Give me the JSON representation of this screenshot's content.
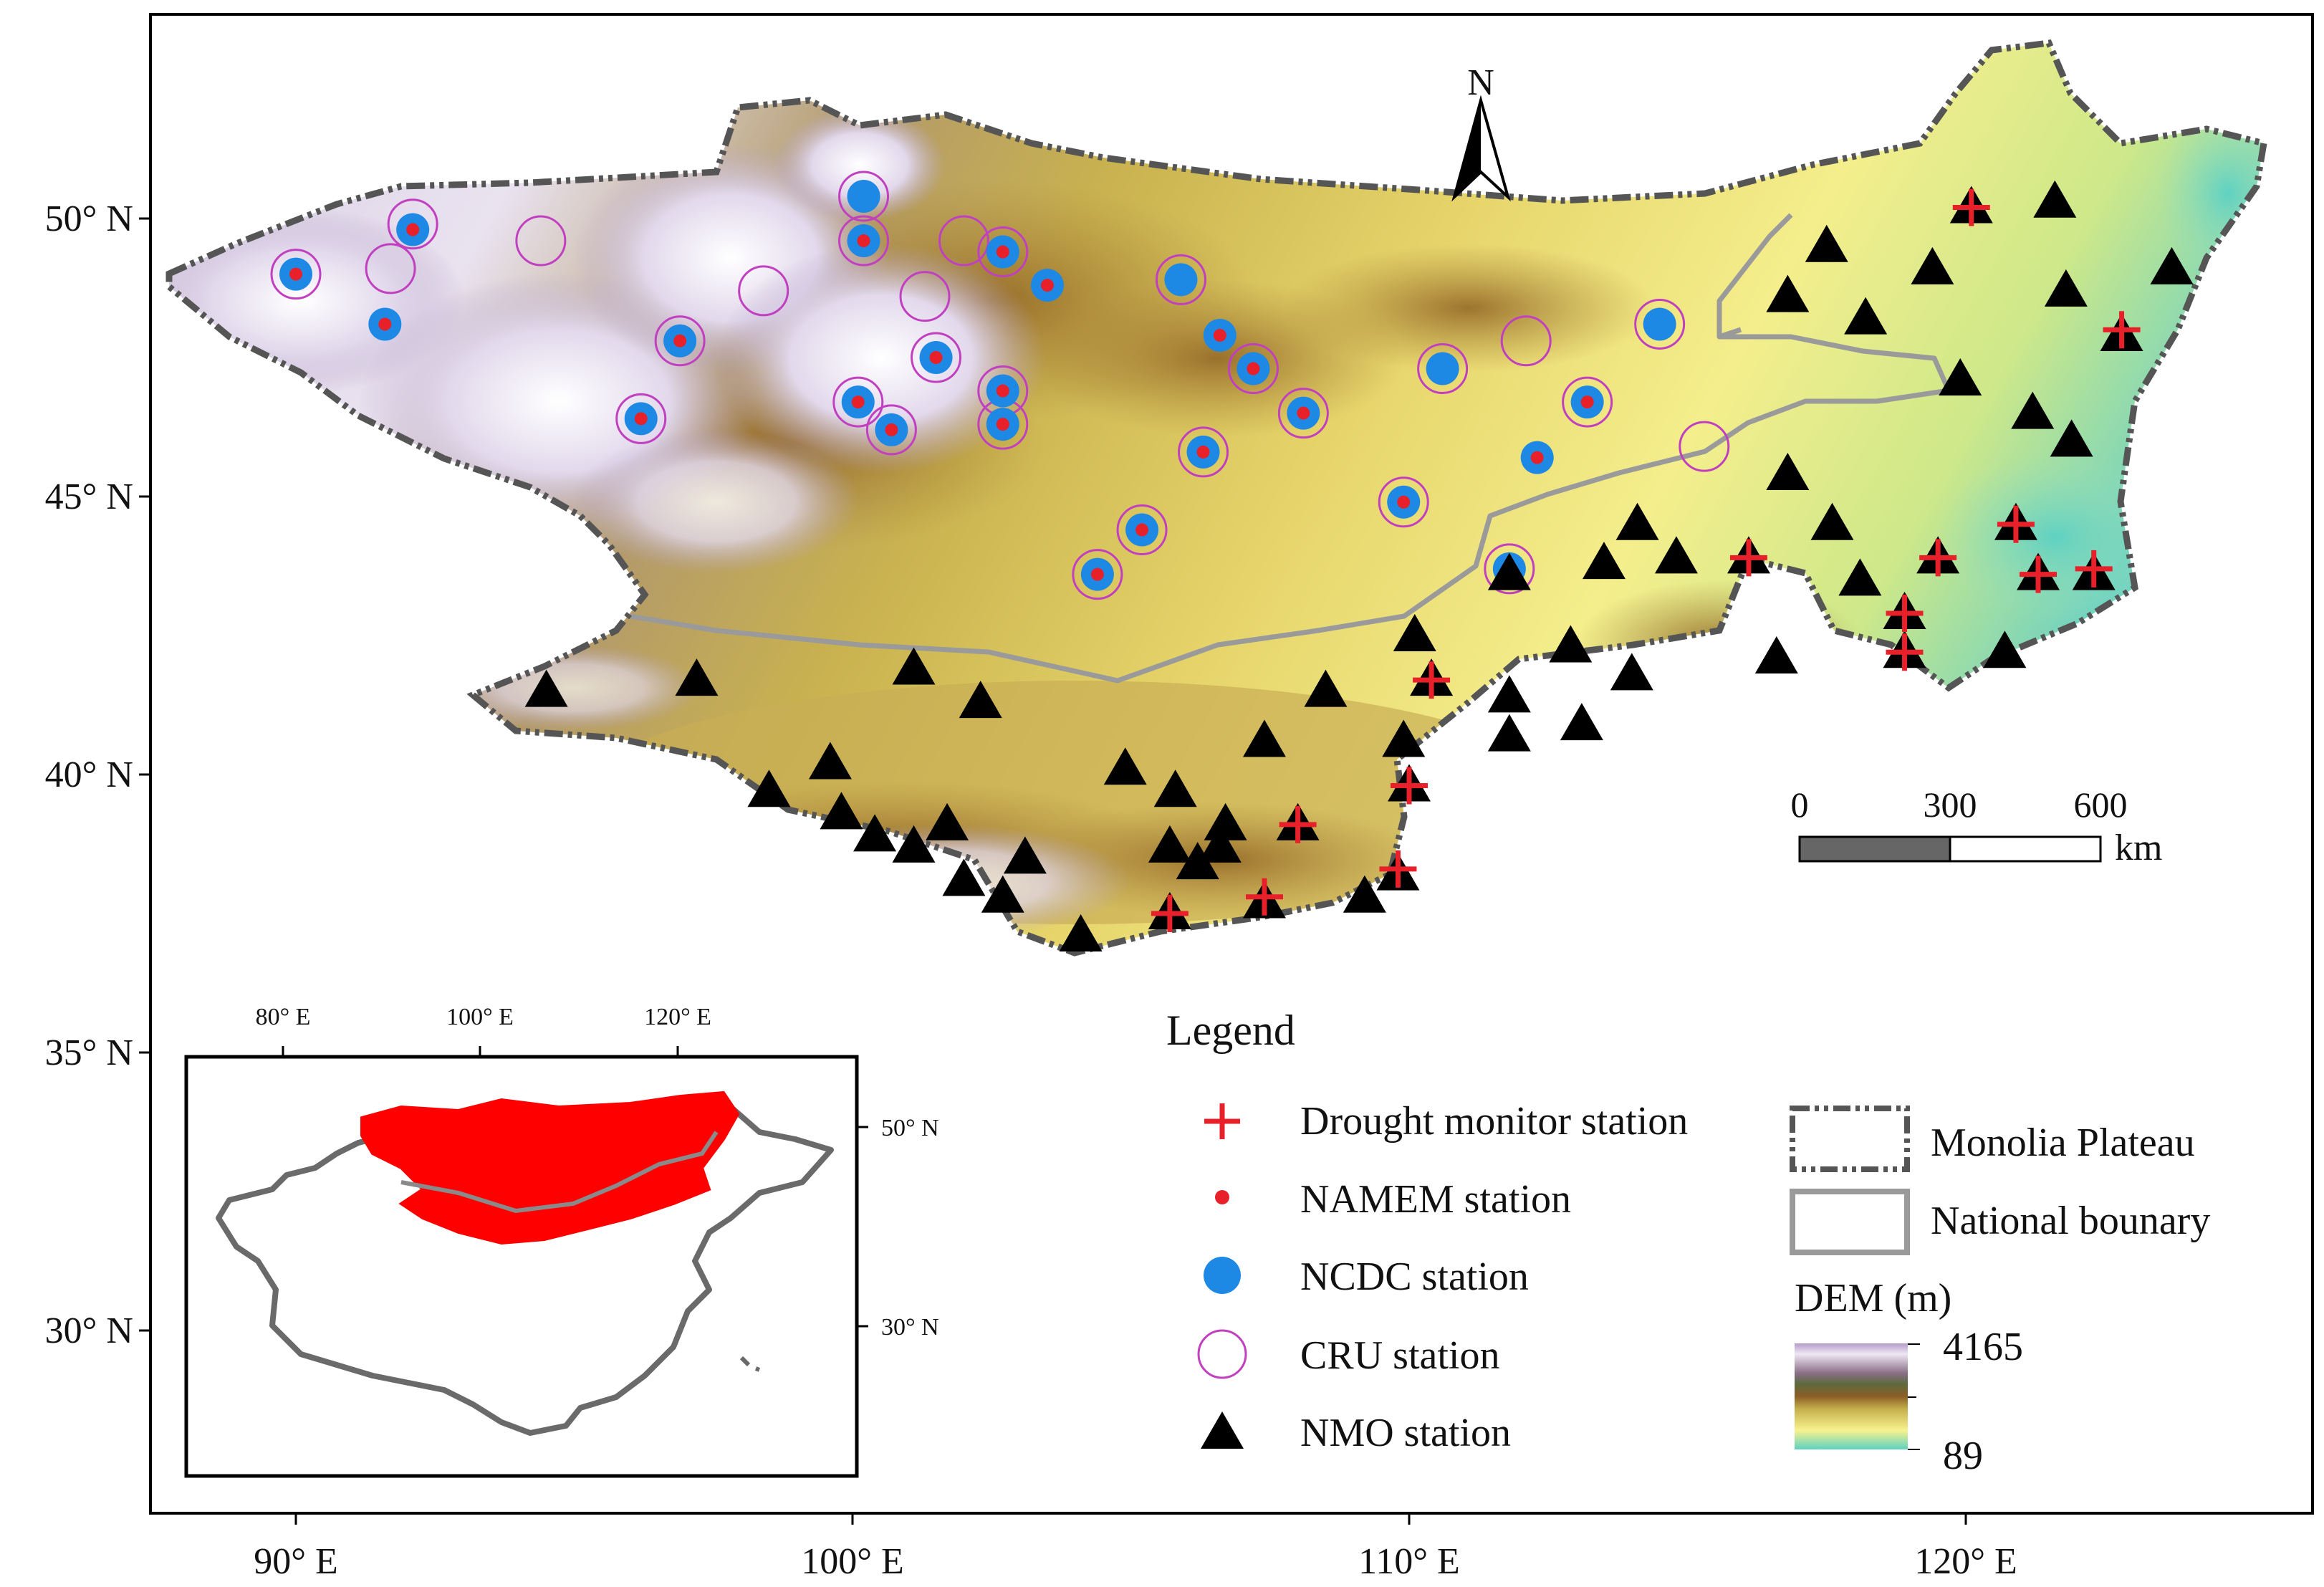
{
  "axes": {
    "lat_labels": [
      "50° N",
      "45° N",
      "40° N",
      "35° N",
      "30° N"
    ],
    "lon_labels": [
      "90° E",
      "100° E",
      "110° E",
      "120° E"
    ]
  },
  "north_arrow": {
    "label": "N"
  },
  "scale_bar": {
    "ticks": [
      "0",
      "300",
      "600"
    ],
    "unit": "km"
  },
  "inset": {
    "lon_labels": [
      "80° E",
      "100° E",
      "120° E"
    ],
    "lat_labels": [
      "50° N",
      "30° N"
    ]
  },
  "legend": {
    "title": "Legend",
    "items": [
      {
        "label": "Drought monitor station",
        "symbol": "plus",
        "color": "#e8202a"
      },
      {
        "label": "NAMEM station",
        "symbol": "dot",
        "color": "#e8202a"
      },
      {
        "label": "NCDC station",
        "symbol": "disc",
        "color": "#1e88e5"
      },
      {
        "label": "CRU station",
        "symbol": "ring",
        "color": "#c040c0"
      },
      {
        "label": "NMO station",
        "symbol": "triangle",
        "color": "#000000"
      }
    ],
    "boundaries": [
      {
        "label": "Monolia Plateau",
        "style": "dash-dot",
        "color": "#555555"
      },
      {
        "label": "National bounary",
        "style": "solid",
        "color": "#9a9a9a"
      }
    ],
    "dem": {
      "title": "DEM (m)",
      "max": "4165",
      "min": "89"
    }
  },
  "map_data": {
    "extent": {
      "lon": [
        87,
        127
      ],
      "lat": [
        27,
        53.5
      ]
    },
    "ncdc_stations": [
      [
        90,
        49
      ],
      [
        92.1,
        49.8
      ],
      [
        91.6,
        48.1
      ],
      [
        96.9,
        47.8
      ],
      [
        96.2,
        46.4
      ],
      [
        100.2,
        50.4
      ],
      [
        100.2,
        49.6
      ],
      [
        100.1,
        46.7
      ],
      [
        100.7,
        46.2
      ],
      [
        101.5,
        47.5
      ],
      [
        102.7,
        49.4
      ],
      [
        102.7,
        46.9
      ],
      [
        102.7,
        46.3
      ],
      [
        103.5,
        48.8
      ],
      [
        105.9,
        48.9
      ],
      [
        106.6,
        47.9
      ],
      [
        107.2,
        47.3
      ],
      [
        108.1,
        46.5
      ],
      [
        106.3,
        45.8
      ],
      [
        105.2,
        44.4
      ],
      [
        104.4,
        43.6
      ],
      [
        109.9,
        44.9
      ],
      [
        110.6,
        47.3
      ],
      [
        112.3,
        45.7
      ],
      [
        113.2,
        46.7
      ],
      [
        114.5,
        48.1
      ],
      [
        111.8,
        43.7
      ]
    ],
    "namem_stations": [
      [
        90,
        49
      ],
      [
        92.1,
        49.8
      ],
      [
        91.6,
        48.1
      ],
      [
        96.9,
        47.8
      ],
      [
        96.2,
        46.4
      ],
      [
        100.2,
        49.6
      ],
      [
        100.1,
        46.7
      ],
      [
        100.7,
        46.2
      ],
      [
        101.5,
        47.5
      ],
      [
        102.7,
        49.4
      ],
      [
        102.7,
        46.9
      ],
      [
        102.7,
        46.3
      ],
      [
        103.5,
        48.8
      ],
      [
        106.6,
        47.9
      ],
      [
        107.2,
        47.3
      ],
      [
        108.1,
        46.5
      ],
      [
        106.3,
        45.8
      ],
      [
        105.2,
        44.4
      ],
      [
        104.4,
        43.6
      ],
      [
        109.9,
        44.9
      ],
      [
        112.3,
        45.7
      ],
      [
        113.2,
        46.7
      ],
      [
        111.8,
        43.7
      ]
    ],
    "cru_stations": [
      [
        90,
        49
      ],
      [
        92.1,
        49.9
      ],
      [
        91.7,
        49.1
      ],
      [
        94.4,
        49.6
      ],
      [
        98.4,
        48.7
      ],
      [
        100.2,
        50.4
      ],
      [
        100.2,
        49.6
      ],
      [
        101.3,
        48.6
      ],
      [
        102,
        49.6
      ],
      [
        102.7,
        49.4
      ],
      [
        101.5,
        47.5
      ],
      [
        100.1,
        46.7
      ],
      [
        100.7,
        46.2
      ],
      [
        102.7,
        46.9
      ],
      [
        102.7,
        46.3
      ],
      [
        96.9,
        47.8
      ],
      [
        96.2,
        46.4
      ],
      [
        105.9,
        48.9
      ],
      [
        107.2,
        47.3
      ],
      [
        108.1,
        46.5
      ],
      [
        106.3,
        45.8
      ],
      [
        105.2,
        44.4
      ],
      [
        104.4,
        43.6
      ],
      [
        109.9,
        44.9
      ],
      [
        110.6,
        47.3
      ],
      [
        112.1,
        47.8
      ],
      [
        114.5,
        48.1
      ],
      [
        113.2,
        46.7
      ],
      [
        115.3,
        45.9
      ],
      [
        111.8,
        43.7
      ]
    ],
    "drought_stations": [
      [
        120.1,
        50.2
      ],
      [
        122.8,
        48
      ],
      [
        120.9,
        44.5
      ],
      [
        121.3,
        43.6
      ],
      [
        122.3,
        43.7
      ],
      [
        119.5,
        43.9
      ],
      [
        118.9,
        42.9
      ],
      [
        118.9,
        42.2
      ],
      [
        116.1,
        43.9
      ],
      [
        110.4,
        41.7
      ],
      [
        110,
        39.8
      ],
      [
        109.8,
        38.3
      ],
      [
        108,
        39.1
      ],
      [
        107.4,
        37.8
      ],
      [
        105.7,
        37.5
      ]
    ],
    "nmo_stations": [
      [
        94.5,
        41.5
      ],
      [
        97.2,
        41.7
      ],
      [
        101.1,
        41.9
      ],
      [
        102.3,
        41.3
      ],
      [
        98.5,
        39.7
      ],
      [
        99.6,
        40.2
      ],
      [
        99.8,
        39.3
      ],
      [
        100.4,
        38.9
      ],
      [
        101.1,
        38.7
      ],
      [
        101.7,
        39.1
      ],
      [
        102,
        38.1
      ],
      [
        102.7,
        37.8
      ],
      [
        103.1,
        38.5
      ],
      [
        104.1,
        37.1
      ],
      [
        104.9,
        40.1
      ],
      [
        105.8,
        39.7
      ],
      [
        105.7,
        38.7
      ],
      [
        106.2,
        38.4
      ],
      [
        106.6,
        38.7
      ],
      [
        106.7,
        39.1
      ],
      [
        107.4,
        40.6
      ],
      [
        108.5,
        41.5
      ],
      [
        105.7,
        37.5
      ],
      [
        107.4,
        37.7
      ],
      [
        108,
        39.1
      ],
      [
        109.2,
        37.8
      ],
      [
        109.8,
        38.2
      ],
      [
        110,
        39.8
      ],
      [
        109.9,
        40.6
      ],
      [
        110.1,
        42.5
      ],
      [
        110.4,
        41.7
      ],
      [
        111.8,
        41.4
      ],
      [
        111.8,
        40.7
      ],
      [
        112.9,
        42.3
      ],
      [
        113.1,
        40.9
      ],
      [
        114,
        41.8
      ],
      [
        113.5,
        43.8
      ],
      [
        114.1,
        44.5
      ],
      [
        114.8,
        43.9
      ],
      [
        116.1,
        43.9
      ],
      [
        116.6,
        42.1
      ],
      [
        111.8,
        43.6
      ],
      [
        116.8,
        45.4
      ],
      [
        117.6,
        44.5
      ],
      [
        118.1,
        43.5
      ],
      [
        118.9,
        42.9
      ],
      [
        118.9,
        42.2
      ],
      [
        119.5,
        43.9
      ],
      [
        120.9,
        44.5
      ],
      [
        121.3,
        43.6
      ],
      [
        122.3,
        43.6
      ],
      [
        120.7,
        42.2
      ],
      [
        116.8,
        48.6
      ],
      [
        117.5,
        49.5
      ],
      [
        118.2,
        48.2
      ],
      [
        119.4,
        49.1
      ],
      [
        119.9,
        47.1
      ],
      [
        120.1,
        50.2
      ],
      [
        121.6,
        50.3
      ],
      [
        121.8,
        48.7
      ],
      [
        121.2,
        46.5
      ],
      [
        121.9,
        46
      ],
      [
        122.8,
        47.9
      ],
      [
        123.7,
        49.1
      ]
    ]
  }
}
